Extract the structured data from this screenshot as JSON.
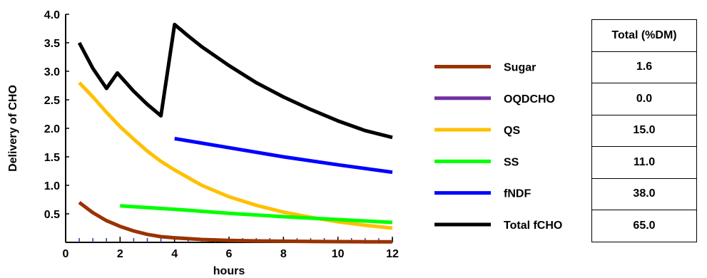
{
  "chart_data": {
    "type": "line",
    "title": "",
    "xlabel": "hours",
    "ylabel": "Delivery of CHO",
    "xlim": [
      0,
      12
    ],
    "ylim": [
      0,
      4.0
    ],
    "x_ticks": [
      "0",
      "2",
      "4",
      "6",
      "8",
      "10",
      "12"
    ],
    "y_ticks": [
      "0.5",
      "1.0",
      "1.5",
      "2.0",
      "2.5",
      "3.0",
      "3.5",
      "4.0"
    ],
    "grid": false,
    "legend_position": "right",
    "series": [
      {
        "name": "Sugar",
        "color": "#993300",
        "x": [
          0.5,
          1,
          1.5,
          2,
          2.5,
          3,
          3.5,
          4,
          5,
          6,
          7,
          8,
          9,
          10,
          11,
          12
        ],
        "y": [
          0.7,
          0.52,
          0.38,
          0.28,
          0.2,
          0.14,
          0.1,
          0.08,
          0.05,
          0.035,
          0.025,
          0.02,
          0.015,
          0.012,
          0.01,
          0.01
        ]
      },
      {
        "name": "OQDCHO",
        "color": "#7030a0",
        "x": [],
        "y": []
      },
      {
        "name": "QS",
        "color": "#ffc000",
        "x": [
          0.5,
          1,
          1.5,
          2,
          2.5,
          3,
          3.5,
          4,
          5,
          6,
          7,
          8,
          9,
          10,
          11,
          12
        ],
        "y": [
          2.8,
          2.55,
          2.28,
          2.03,
          1.81,
          1.6,
          1.42,
          1.27,
          1.0,
          0.8,
          0.65,
          0.53,
          0.44,
          0.36,
          0.3,
          0.25
        ]
      },
      {
        "name": "SS",
        "color": "#00ff00",
        "x": [
          2,
          4,
          6,
          8,
          10,
          12
        ],
        "y": [
          0.64,
          0.58,
          0.51,
          0.45,
          0.4,
          0.35
        ]
      },
      {
        "name": "fNDF",
        "color": "#0000ff",
        "x": [
          4,
          6,
          8,
          10,
          12
        ],
        "y": [
          1.82,
          1.66,
          1.5,
          1.36,
          1.23
        ]
      },
      {
        "name": "Total fCHO",
        "color": "#000000",
        "x": [
          0.5,
          1,
          1.5,
          1.9,
          2.5,
          3,
          3.5,
          4,
          4.5,
          5,
          6,
          7,
          8,
          9,
          10,
          11,
          12
        ],
        "y": [
          3.5,
          3.05,
          2.7,
          2.97,
          2.65,
          2.42,
          2.22,
          3.82,
          3.62,
          3.43,
          3.1,
          2.8,
          2.55,
          2.33,
          2.13,
          1.96,
          1.84
        ]
      }
    ]
  },
  "table": {
    "header": "Total (%DM)",
    "rows": [
      {
        "series": "Sugar",
        "value": "1.6"
      },
      {
        "series": "OQDCHO",
        "value": "0.0"
      },
      {
        "series": "QS",
        "value": "15.0"
      },
      {
        "series": "SS",
        "value": "11.0"
      },
      {
        "series": "fNDF",
        "value": "38.0"
      },
      {
        "series": "Total fCHO",
        "value": "65.0"
      }
    ]
  }
}
